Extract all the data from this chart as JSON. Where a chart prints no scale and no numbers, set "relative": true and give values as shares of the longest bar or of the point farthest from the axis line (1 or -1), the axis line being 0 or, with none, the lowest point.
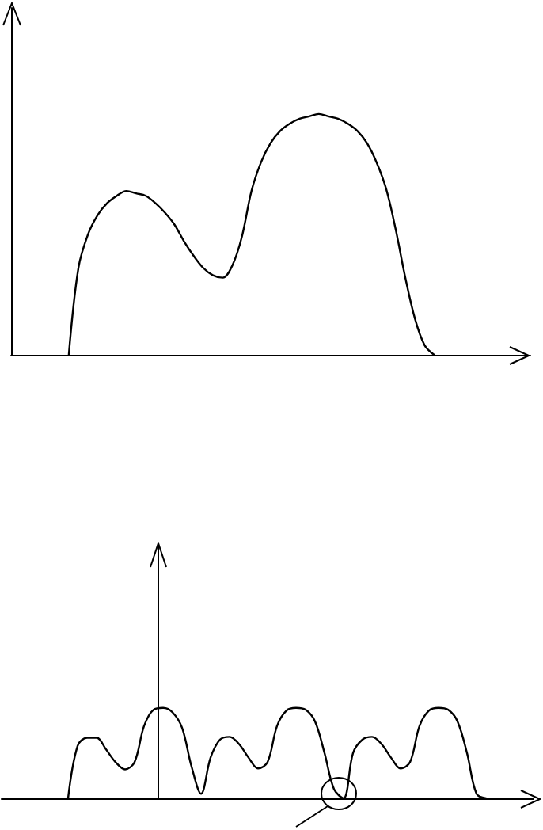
{
  "chart_data": [
    {
      "type": "line",
      "relative": true,
      "color": "#000000",
      "grid": false,
      "categories": [
        null,
        null,
        null,
        null,
        null,
        null,
        null,
        null,
        null,
        null,
        null,
        null,
        null,
        null,
        null,
        null,
        null,
        null,
        null,
        null,
        null,
        null,
        null,
        null,
        null,
        null,
        null,
        null,
        null,
        null,
        null,
        null,
        null,
        null,
        null,
        null,
        null,
        null,
        null,
        null,
        null,
        null,
        null,
        null,
        null,
        null,
        null,
        null,
        null,
        null,
        null,
        null,
        null,
        null,
        null
      ],
      "values": [
        null,
        null,
        null,
        null,
        null,
        null,
        0,
        0.36,
        0.5,
        0.58,
        0.63,
        0.66,
        0.68,
        0.67,
        0.66,
        0.63,
        0.59,
        0.54,
        0.47,
        0.41,
        0.36,
        0.33,
        0.32,
        0.37,
        0.49,
        0.68,
        0.8,
        0.88,
        0.93,
        0.96,
        0.98,
        0.99,
        1,
        0.99,
        0.98,
        0.96,
        0.93,
        0.88,
        0.8,
        0.69,
        0.52,
        0.32,
        0.15,
        0.04,
        0,
        null,
        null,
        null,
        null,
        null,
        null,
        null,
        null,
        null,
        null
      ]
    },
    {
      "type": "line",
      "relative": true,
      "color": "#000000",
      "grid": false,
      "categories": [
        null,
        null,
        null,
        null,
        null,
        null,
        null,
        null,
        null,
        null,
        null,
        null,
        null,
        null,
        null,
        null,
        null,
        null,
        null,
        null,
        null,
        null,
        null,
        null,
        null,
        null,
        null,
        null,
        null,
        null,
        null,
        null,
        null,
        null,
        null,
        null,
        null,
        null,
        null,
        null,
        null,
        null,
        null,
        null,
        null,
        null,
        null,
        null,
        null,
        null,
        null,
        null,
        null,
        null,
        null,
        null,
        null
      ],
      "values": [
        null,
        null,
        null,
        null,
        null,
        null,
        null,
        0,
        0.58,
        0.67,
        0.67,
        0.54,
        0.4,
        0.32,
        0.4,
        0.8,
        0.98,
        1,
        0.95,
        0.78,
        0.35,
        0.05,
        0.45,
        0.65,
        0.68,
        0.6,
        0.45,
        0.33,
        0.4,
        0.8,
        0.97,
        1,
        0.98,
        0.85,
        0.5,
        0.1,
        0,
        0.5,
        0.65,
        0.68,
        0.6,
        0.45,
        0.33,
        0.4,
        0.8,
        0.97,
        1,
        0.98,
        0.85,
        0.5,
        0.05,
        0,
        null,
        null,
        null,
        null,
        null
      ]
    }
  ]
}
